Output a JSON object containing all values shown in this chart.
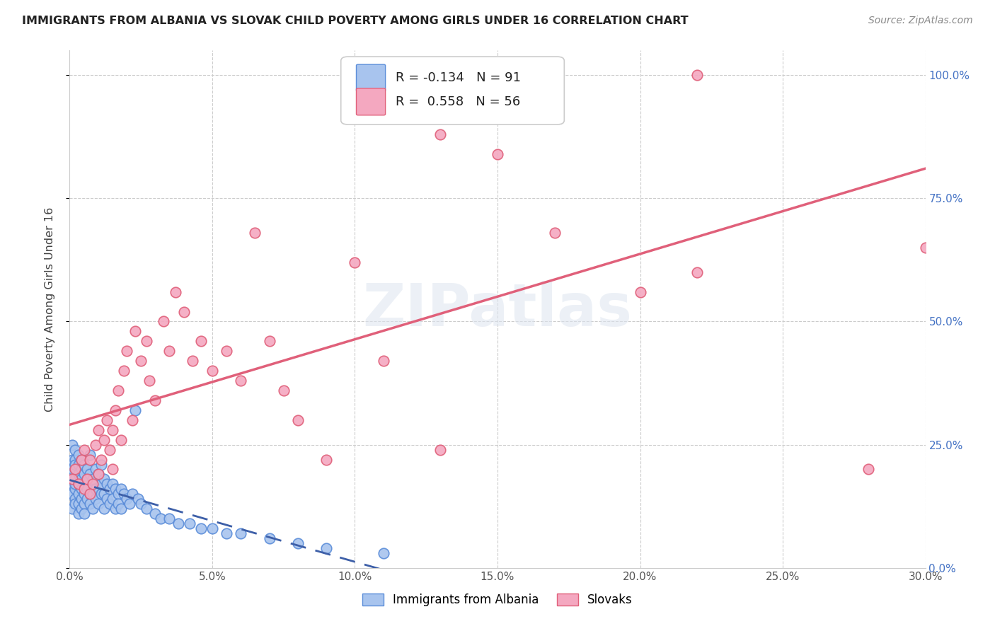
{
  "title": "IMMIGRANTS FROM ALBANIA VS SLOVAK CHILD POVERTY AMONG GIRLS UNDER 16 CORRELATION CHART",
  "source": "Source: ZipAtlas.com",
  "ylabel": "Child Poverty Among Girls Under 16",
  "xlim": [
    0.0,
    0.3
  ],
  "ylim": [
    0.0,
    1.05
  ],
  "albania_color": "#a8c4ee",
  "slovak_color": "#f4a8c0",
  "albania_edge_color": "#5b8dd9",
  "slovak_edge_color": "#e0607a",
  "albania_line_color": "#3d5fa8",
  "slovak_line_color": "#e0607a",
  "legend_albania_r": "-0.134",
  "legend_albania_n": "91",
  "legend_slovak_r": "0.558",
  "legend_slovak_n": "56",
  "legend_label_albania": "Immigrants from Albania",
  "legend_label_slovak": "Slovaks",
  "watermark": "ZIPatlas",
  "albania_x": [
    0.001,
    0.001,
    0.001,
    0.001,
    0.001,
    0.001,
    0.001,
    0.002,
    0.002,
    0.002,
    0.002,
    0.002,
    0.002,
    0.002,
    0.002,
    0.002,
    0.003,
    0.003,
    0.003,
    0.003,
    0.003,
    0.003,
    0.003,
    0.004,
    0.004,
    0.004,
    0.004,
    0.004,
    0.004,
    0.005,
    0.005,
    0.005,
    0.005,
    0.005,
    0.005,
    0.006,
    0.006,
    0.006,
    0.006,
    0.007,
    0.007,
    0.007,
    0.007,
    0.008,
    0.008,
    0.008,
    0.009,
    0.009,
    0.009,
    0.01,
    0.01,
    0.01,
    0.011,
    0.011,
    0.011,
    0.012,
    0.012,
    0.012,
    0.013,
    0.013,
    0.014,
    0.014,
    0.015,
    0.015,
    0.016,
    0.016,
    0.017,
    0.017,
    0.018,
    0.018,
    0.019,
    0.02,
    0.021,
    0.022,
    0.023,
    0.024,
    0.025,
    0.027,
    0.03,
    0.032,
    0.035,
    0.038,
    0.042,
    0.046,
    0.05,
    0.055,
    0.06,
    0.07,
    0.08,
    0.09,
    0.11
  ],
  "albania_y": [
    0.18,
    0.2,
    0.22,
    0.15,
    0.17,
    0.12,
    0.25,
    0.14,
    0.18,
    0.22,
    0.16,
    0.2,
    0.13,
    0.24,
    0.17,
    0.21,
    0.15,
    0.19,
    0.23,
    0.13,
    0.17,
    0.21,
    0.11,
    0.16,
    0.2,
    0.14,
    0.18,
    0.12,
    0.22,
    0.15,
    0.19,
    0.13,
    0.17,
    0.21,
    0.11,
    0.16,
    0.2,
    0.14,
    0.18,
    0.15,
    0.19,
    0.13,
    0.23,
    0.15,
    0.18,
    0.12,
    0.16,
    0.2,
    0.14,
    0.16,
    0.19,
    0.13,
    0.17,
    0.15,
    0.21,
    0.15,
    0.18,
    0.12,
    0.17,
    0.14,
    0.16,
    0.13,
    0.17,
    0.14,
    0.16,
    0.12,
    0.15,
    0.13,
    0.16,
    0.12,
    0.15,
    0.14,
    0.13,
    0.15,
    0.32,
    0.14,
    0.13,
    0.12,
    0.11,
    0.1,
    0.1,
    0.09,
    0.09,
    0.08,
    0.08,
    0.07,
    0.07,
    0.06,
    0.05,
    0.04,
    0.03
  ],
  "slovak_x": [
    0.001,
    0.002,
    0.003,
    0.004,
    0.005,
    0.005,
    0.006,
    0.007,
    0.007,
    0.008,
    0.009,
    0.01,
    0.01,
    0.011,
    0.012,
    0.013,
    0.014,
    0.015,
    0.015,
    0.016,
    0.017,
    0.018,
    0.019,
    0.02,
    0.022,
    0.023,
    0.025,
    0.027,
    0.028,
    0.03,
    0.033,
    0.035,
    0.037,
    0.04,
    0.043,
    0.046,
    0.05,
    0.055,
    0.06,
    0.065,
    0.07,
    0.075,
    0.08,
    0.09,
    0.1,
    0.11,
    0.13,
    0.15,
    0.17,
    0.2,
    0.13,
    0.22,
    0.17,
    0.28,
    0.22,
    0.3
  ],
  "slovak_y": [
    0.18,
    0.2,
    0.17,
    0.22,
    0.16,
    0.24,
    0.18,
    0.15,
    0.22,
    0.17,
    0.25,
    0.19,
    0.28,
    0.22,
    0.26,
    0.3,
    0.24,
    0.28,
    0.2,
    0.32,
    0.36,
    0.26,
    0.4,
    0.44,
    0.3,
    0.48,
    0.42,
    0.46,
    0.38,
    0.34,
    0.5,
    0.44,
    0.56,
    0.52,
    0.42,
    0.46,
    0.4,
    0.44,
    0.38,
    0.68,
    0.46,
    0.36,
    0.3,
    0.22,
    0.62,
    0.42,
    0.88,
    0.84,
    1.0,
    0.56,
    0.24,
    1.0,
    0.68,
    0.2,
    0.6,
    0.65
  ]
}
